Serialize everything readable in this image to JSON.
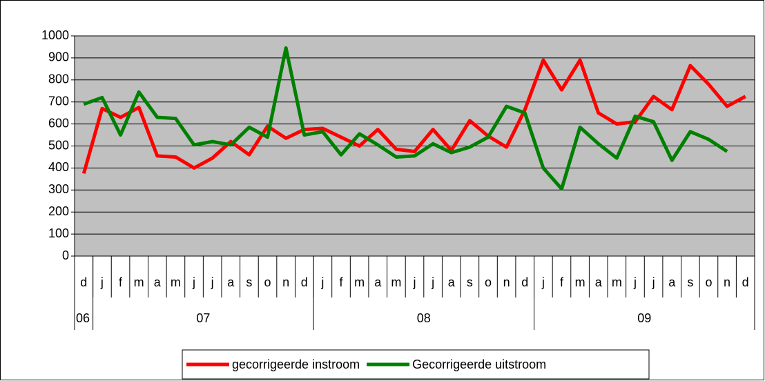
{
  "chart_data": {
    "type": "line",
    "categories": [
      "d",
      "j",
      "f",
      "m",
      "a",
      "m",
      "j",
      "j",
      "a",
      "s",
      "o",
      "n",
      "d",
      "j",
      "f",
      "m",
      "a",
      "m",
      "j",
      "j",
      "a",
      "s",
      "o",
      "n",
      "d",
      "j",
      "f",
      "m",
      "a",
      "m",
      "j",
      "j",
      "a",
      "s",
      "o",
      "n",
      "d"
    ],
    "x_groups": [
      {
        "label": "06",
        "span": 1
      },
      {
        "label": "07",
        "span": 12
      },
      {
        "label": "08",
        "span": 12
      },
      {
        "label": "09",
        "span": 12
      }
    ],
    "series": [
      {
        "name": "gecorrigeerde instroom",
        "color": "#ff0000",
        "values": [
          375,
          670,
          630,
          675,
          455,
          450,
          400,
          445,
          520,
          460,
          590,
          535,
          575,
          580,
          540,
          500,
          575,
          485,
          475,
          575,
          480,
          615,
          545,
          495,
          665,
          890,
          755,
          890,
          650,
          600,
          610,
          725,
          665,
          865,
          780,
          680,
          725
        ]
      },
      {
        "name": "Gecorrigeerde uitstroom",
        "color": "#008000",
        "values": [
          690,
          720,
          550,
          745,
          630,
          625,
          505,
          520,
          505,
          585,
          540,
          945,
          550,
          565,
          460,
          555,
          505,
          450,
          455,
          510,
          470,
          495,
          540,
          680,
          650,
          400,
          305,
          585,
          510,
          445,
          635,
          610,
          435,
          565,
          530,
          475,
          null
        ]
      }
    ],
    "ylim": [
      0,
      1000
    ],
    "yticks": [
      0,
      100,
      200,
      300,
      400,
      500,
      600,
      700,
      800,
      900,
      1000
    ],
    "grid": true,
    "legend": "bottom"
  }
}
